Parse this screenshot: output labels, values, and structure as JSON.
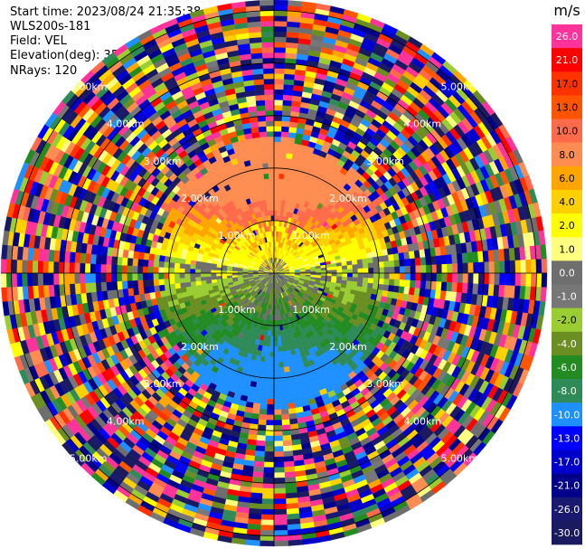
{
  "header": {
    "start_time": "Start time: 2023/08/24 21:35:38",
    "instrument": "WLS200s-181",
    "field": "Field: VEL",
    "elevation": "Elevation(deg): 35.30",
    "nrays": "NRays: 120"
  },
  "chart_data": {
    "type": "heatmap",
    "projection": "polar-ppi",
    "field": "VEL",
    "nrays": 120,
    "max_range_km": 5.2,
    "gate_km": 0.1,
    "range_ring_labels": [
      "1.00km",
      "2.00km",
      "3.00km",
      "4.00km",
      "5.00km"
    ],
    "rings_km": [
      1,
      2,
      3,
      4,
      5
    ],
    "colorbar": {
      "unit": "m/s",
      "ticks": [
        "26.0",
        "21.0",
        "17.0",
        "13.0",
        "10.0",
        "8.0",
        "6.0",
        "4.0",
        "2.0",
        "1.0",
        "0.0",
        "-1.0",
        "-2.0",
        "-4.0",
        "-6.0",
        "-8.0",
        "-10.0",
        "-13.0",
        "-17.0",
        "-21.0",
        "-26.0",
        "-30.0"
      ],
      "colors": [
        "#ff3399",
        "#ff0000",
        "#ff3300",
        "#ff5500",
        "#ff6a4a",
        "#ff8c50",
        "#ffa500",
        "#ffd000",
        "#ffff00",
        "#ffff80",
        "#6e6e6e",
        "#777777",
        "#9acd32",
        "#6b8e23",
        "#228b22",
        "#2e8b57",
        "#1e90ff",
        "#0000ff",
        "#0000cd",
        "#00008b",
        "#191970",
        "#1a1a60"
      ]
    },
    "wind_pattern": {
      "north_half": "positive (yellow to orange)",
      "south_half": "negative (green to blue)",
      "outer_region": "noise"
    }
  }
}
